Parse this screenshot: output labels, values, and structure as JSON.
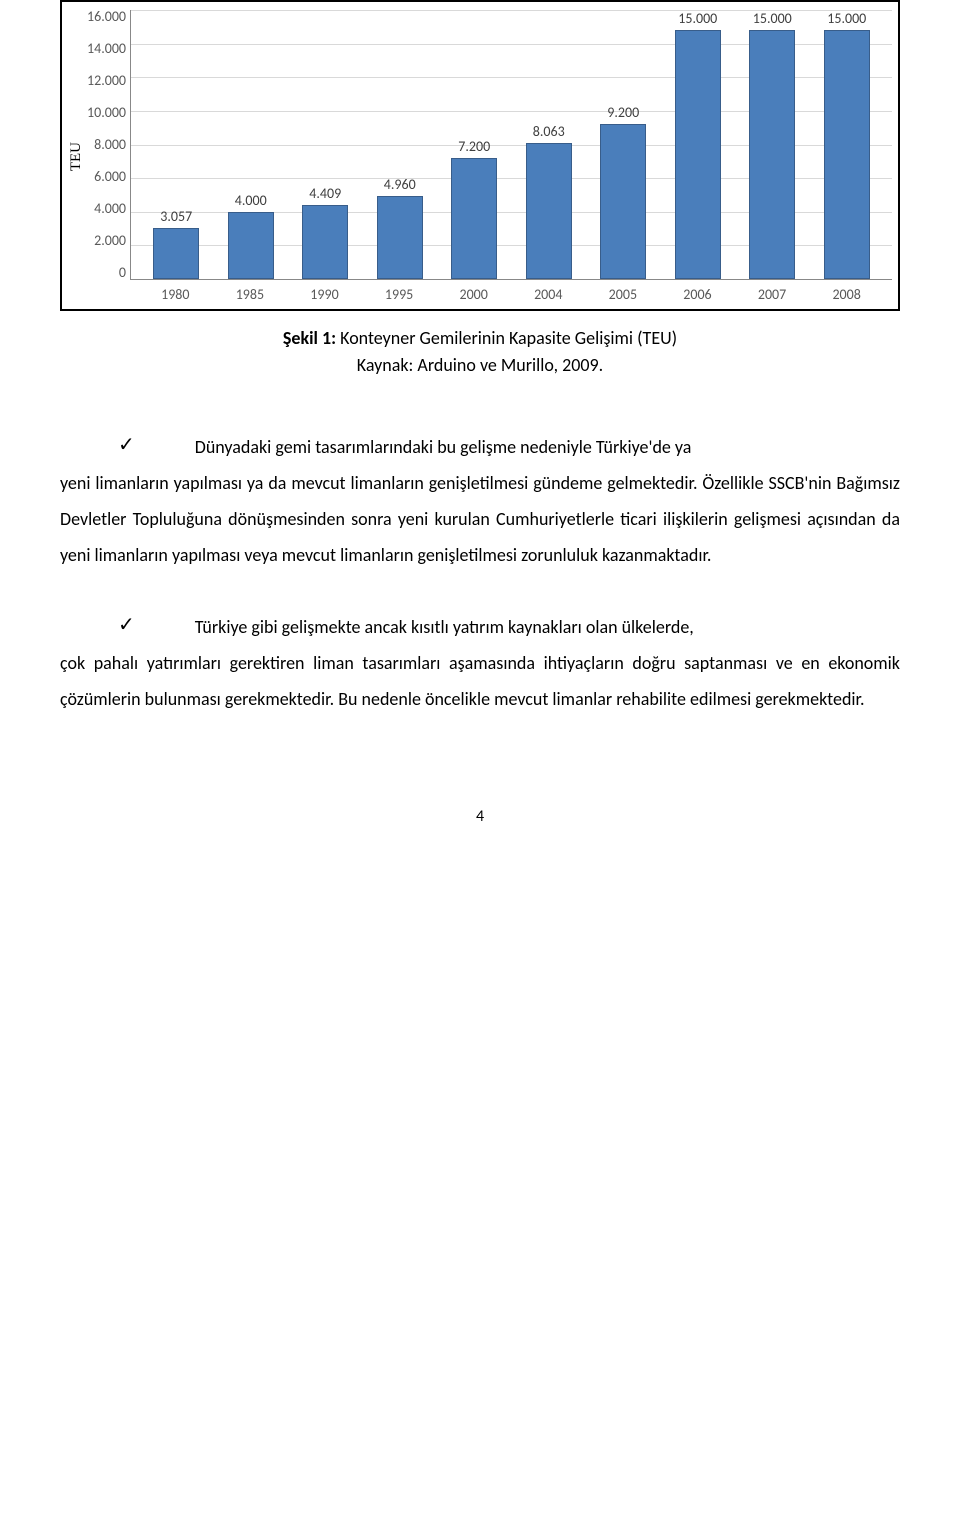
{
  "chart": {
    "type": "bar",
    "y_axis_label": "TEU",
    "categories": [
      "1980",
      "1985",
      "1990",
      "1995",
      "2000",
      "2004",
      "2005",
      "2006",
      "2007",
      "2008"
    ],
    "values": [
      3057,
      4000,
      4409,
      4960,
      7200,
      8063,
      9200,
      15000,
      15000,
      15000
    ],
    "value_labels": [
      "3.057",
      "4.000",
      "4.409",
      "4.960",
      "7.200",
      "8.063",
      "9.200",
      "15.000",
      "15.000",
      "15.000"
    ],
    "y_ticks": [
      "16.000",
      "14.000",
      "12.000",
      "10.000",
      "8.000",
      "6.000",
      "4.000",
      "2.000",
      "0"
    ],
    "y_max": 16000,
    "y_tick_step": 2000,
    "bar_color": "#4a7ebb",
    "bar_border_color": "#385d8a",
    "grid_color": "#d9d9d9",
    "axis_color": "#888888",
    "tick_label_color": "#595959",
    "value_label_color": "#404040",
    "value_label_fontsize": 14,
    "tick_label_fontsize": 14,
    "ylabel_fontsize": 15,
    "background_color": "#ffffff",
    "bar_width_ratio": 0.62
  },
  "caption": {
    "label": "Şekil 1:",
    "title": " Konteyner Gemilerinin Kapasite Gelişimi (TEU)",
    "source": "Kaynak: Arduino ve Murillo, 2009."
  },
  "paragraphs": {
    "p1_first": "Dünyadaki gemi tasarımlarındaki bu gelişme nedeniyle Türkiye'de ya",
    "p1_rest": "yeni limanların yapılması ya da mevcut limanların genişletilmesi gündeme gelmektedir. Özellikle SSCB'nin Bağımsız Devletler Topluluğuna dönüşmesinden sonra yeni kurulan Cumhuriyetlerle ticari ilişkilerin gelişmesi açısından da yeni limanların yapılması veya mevcut limanların genişletilmesi zorunluluk kazanmaktadır.",
    "p2_first": "Türkiye gibi gelişmekte ancak kısıtlı yatırım kaynakları olan ülkelerde,",
    "p2_rest": "çok pahalı yatırımları gerektiren liman tasarımları aşamasında ihtiyaçların doğru saptanması ve en ekonomik çözümlerin bulunması gerekmektedir. Bu nedenle öncelikle mevcut limanlar rehabilite edilmesi gerekmektedir."
  },
  "check_glyph": "✓",
  "page_number": "4"
}
